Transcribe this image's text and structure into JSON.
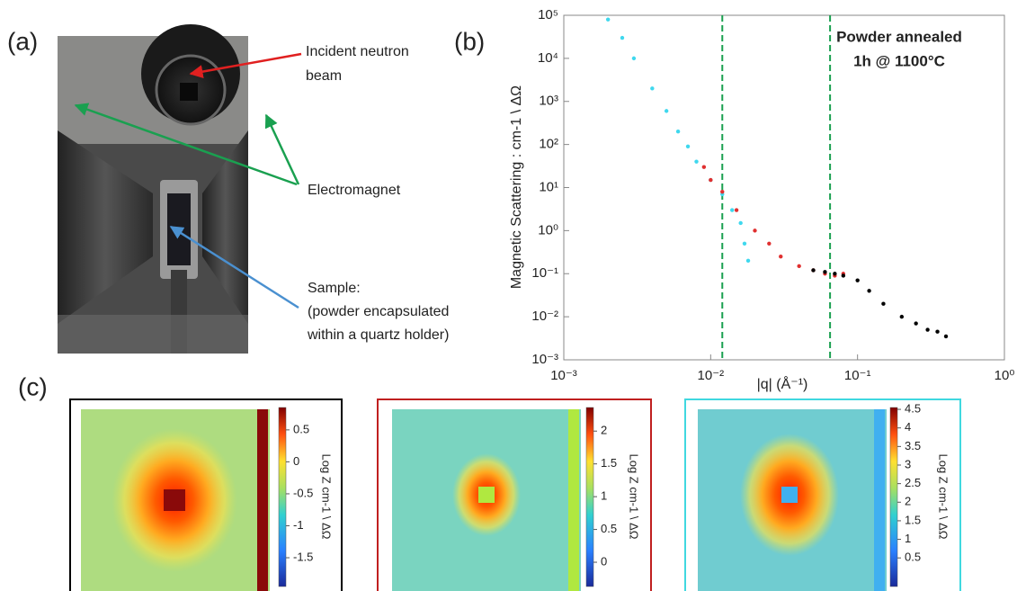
{
  "panel_labels": [
    "(a)",
    "(b)",
    "(c)"
  ],
  "photo": {
    "annotations": [
      "Incident neutron",
      "beam",
      "Electromagnet",
      "Sample:",
      "(powder encapsulated",
      "within a quartz holder)"
    ]
  },
  "chart_data": {
    "type": "scatter",
    "log_x": true,
    "log_y": true,
    "xlabel": "|q| (Å⁻¹)",
    "ylabel": "Magnetic Scattering : cm-1 \\ ΔΩ",
    "annotation": [
      "Powder annealed",
      "1h @ 1100°C"
    ],
    "xlim": [
      0.001,
      1
    ],
    "ylim": [
      0.001,
      100000
    ],
    "xticks": [
      {
        "value": 0.001,
        "label": "10⁻³"
      },
      {
        "value": 0.01,
        "label": "10⁻²"
      },
      {
        "value": 0.1,
        "label": "10⁻¹"
      },
      {
        "value": 1,
        "label": "10⁰"
      }
    ],
    "yticks": [
      {
        "value": 0.001,
        "label": "10⁻³"
      },
      {
        "value": 0.01,
        "label": "10⁻²"
      },
      {
        "value": 0.1,
        "label": "10⁻¹"
      },
      {
        "value": 1,
        "label": "10⁰"
      },
      {
        "value": 10,
        "label": "10¹"
      },
      {
        "value": 100,
        "label": "10²"
      },
      {
        "value": 1000,
        "label": "10³"
      },
      {
        "value": 10000,
        "label": "10⁴"
      },
      {
        "value": 100000,
        "label": "10⁵"
      }
    ],
    "vlines": [
      0.012,
      0.065
    ],
    "vline_color": "#1aa050",
    "series": [
      {
        "color": "#3fd8ee",
        "x": [
          0.002,
          0.0025,
          0.003,
          0.004,
          0.005,
          0.006,
          0.007,
          0.008,
          0.01,
          0.012,
          0.014,
          0.016,
          0.017,
          0.018
        ],
        "values": [
          80000,
          30000,
          10000,
          2000,
          600,
          200,
          90,
          40,
          15,
          7,
          3,
          1.5,
          0.5,
          0.2
        ]
      },
      {
        "color": "#e03030",
        "x": [
          0.009,
          0.01,
          0.012,
          0.015,
          0.02,
          0.025,
          0.03,
          0.04,
          0.05,
          0.06,
          0.07,
          0.08
        ],
        "values": [
          30,
          15,
          8,
          3,
          1,
          0.5,
          0.25,
          0.15,
          0.12,
          0.1,
          0.09,
          0.1
        ]
      },
      {
        "color": "#000000",
        "x": [
          0.05,
          0.06,
          0.07,
          0.08,
          0.1,
          0.12,
          0.15,
          0.2,
          0.25,
          0.3,
          0.35,
          0.4
        ],
        "values": [
          0.12,
          0.11,
          0.1,
          0.09,
          0.07,
          0.04,
          0.02,
          0.01,
          0.007,
          0.005,
          0.0045,
          0.0035
        ]
      }
    ]
  },
  "heatmaps": [
    {
      "border_color": "#000000",
      "colorbar_label": "Log Z  cm-1 \\ ΔΩ",
      "colorbar_lim": [
        -1.95,
        0.85
      ],
      "colorbar_ticks": [
        0.5,
        0,
        -0.5,
        -1,
        -1.5
      ]
    },
    {
      "border_color": "#c02020",
      "colorbar_label": "Log Z  cm-1 \\ ΔΩ",
      "colorbar_lim": [
        -0.37,
        2.36
      ],
      "colorbar_ticks": [
        2,
        1.5,
        1,
        0.5,
        0
      ]
    },
    {
      "border_color": "#40d8e0",
      "colorbar_label": "Log Z  cm-1 \\ ΔΩ",
      "colorbar_lim": [
        -0.27,
        4.55
      ],
      "colorbar_ticks": [
        4.5,
        4,
        3.5,
        3,
        2.5,
        2,
        1.5,
        1,
        0.5
      ]
    }
  ]
}
